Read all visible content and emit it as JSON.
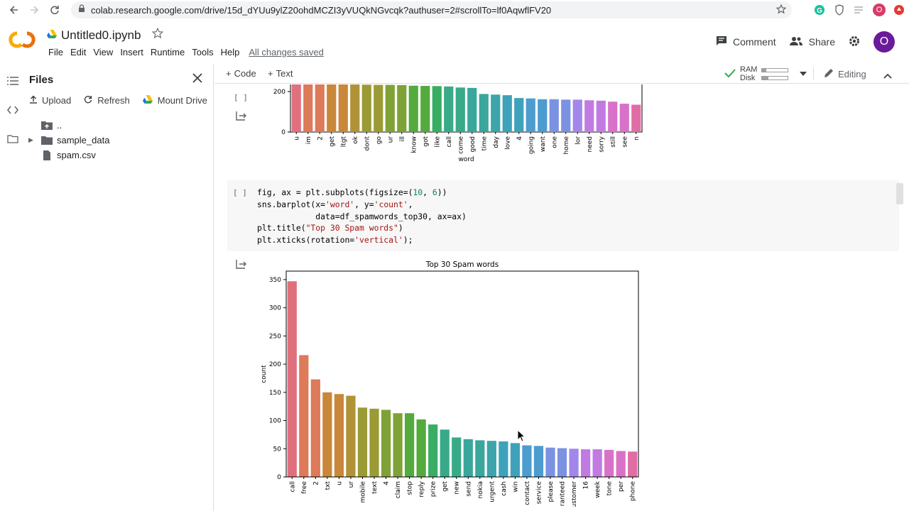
{
  "browser": {
    "url": "colab.research.google.com/drive/15d_dYUu9ylZ20ohdMCZI3yVUQkNGvcqk?authuser=2#scrollTo=lf0AqwflFV20",
    "profile_initial": "O"
  },
  "header": {
    "notebook_title": "Untitled0.ipynb",
    "menu": [
      "File",
      "Edit",
      "View",
      "Insert",
      "Runtime",
      "Tools",
      "Help"
    ],
    "saved_status": "All changes saved",
    "comment_label": "Comment",
    "share_label": "Share",
    "avatar_initial": "O"
  },
  "files": {
    "title": "Files",
    "upload_label": "Upload",
    "refresh_label": "Refresh",
    "mount_label": "Mount Drive",
    "items": [
      {
        "label": "..",
        "type": "up"
      },
      {
        "label": "sample_data",
        "type": "folder"
      },
      {
        "label": "spam.csv",
        "type": "file"
      }
    ]
  },
  "toolbar": {
    "add_code": "Code",
    "add_text": "Text",
    "ram_label": "RAM",
    "disk_label": "Disk",
    "ram_usage": 0.15,
    "disk_usage": 0.25,
    "editing_label": "Editing"
  },
  "cells": {
    "run_bracket_1": "[ ]",
    "run_bracket_2": "[ ]",
    "code_lines": [
      "fig, ax = plt.subplots(figsize=(10, 6))",
      "sns.barplot(x='word', y='count',",
      "            data=df_spamwords_top30, ax=ax)",
      "plt.title(\"Top 30 Spam words\")",
      "plt.xticks(rotation='vertical');"
    ]
  },
  "chart_data": [
    {
      "type": "bar",
      "title": "",
      "xlabel": "word",
      "ylabel": "",
      "ylim": [
        0,
        260
      ],
      "yticks": [
        0,
        200
      ],
      "categories": [
        "u",
        "im",
        "2",
        "get",
        "ltgt",
        "ok",
        "dont",
        "go",
        "ur",
        "ill",
        "know",
        "got",
        "like",
        "call",
        "come",
        "good",
        "time",
        "day",
        "love",
        "4",
        "going",
        "want",
        "one",
        "home",
        "lor",
        "need",
        "sorry",
        "still",
        "see",
        "n"
      ],
      "values": [
        252,
        247,
        240,
        237,
        236,
        235,
        234,
        233,
        233,
        232,
        229,
        228,
        227,
        225,
        220,
        218,
        188,
        185,
        182,
        168,
        166,
        162,
        162,
        160,
        160,
        157,
        155,
        150,
        140,
        135
      ],
      "visible_value_top": 235
    },
    {
      "type": "bar",
      "title": "Top 30 Spam words",
      "xlabel": "",
      "ylabel": "count",
      "ylim": [
        0,
        365
      ],
      "yticks": [
        0,
        50,
        100,
        150,
        200,
        250,
        300,
        350
      ],
      "categories": [
        "call",
        "free",
        "2",
        "txt",
        "u",
        "ur",
        "mobile",
        "text",
        "4",
        "claim",
        "stop",
        "reply",
        "prize",
        "get",
        "new",
        "send",
        "nokia",
        "urgent",
        "cash",
        "win",
        "contact",
        "service",
        "please",
        "guaranteed",
        "customer",
        "16",
        "week",
        "tone",
        "per",
        "phone"
      ],
      "values": [
        347,
        216,
        173,
        150,
        147,
        144,
        123,
        121,
        119,
        113,
        113,
        102,
        93,
        84,
        70,
        67,
        65,
        64,
        63,
        60,
        56,
        55,
        52,
        51,
        50,
        49,
        49,
        48,
        46,
        45
      ]
    }
  ]
}
